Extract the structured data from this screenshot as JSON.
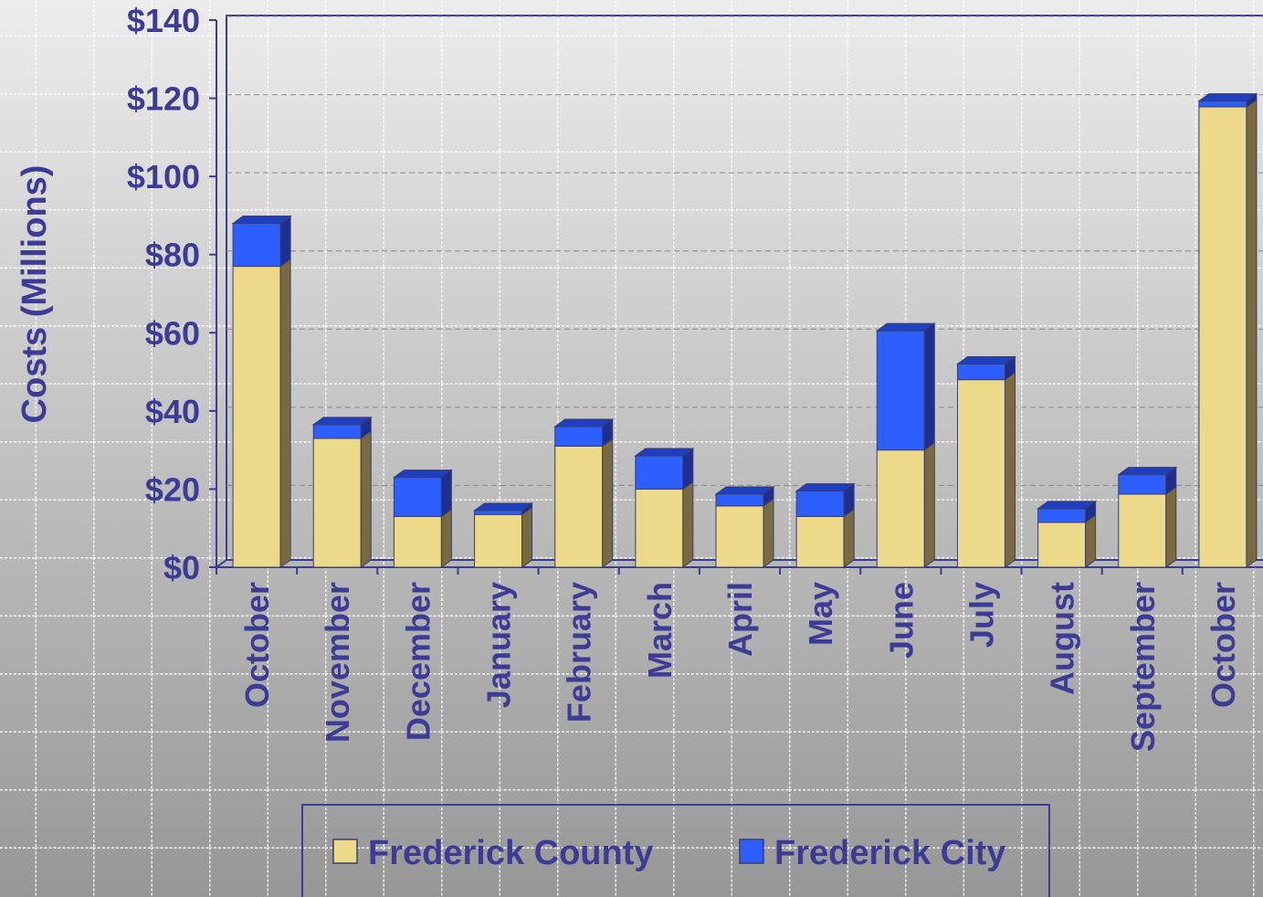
{
  "chart_data": {
    "type": "stacked_bar_3d",
    "y_label": "Costs (Millions)",
    "categories": [
      "October",
      "November",
      "December",
      "January",
      "February",
      "March",
      "April",
      "May",
      "June",
      "July",
      "August",
      "September",
      "October"
    ],
    "series": [
      {
        "name": "Frederick County",
        "color": "#ecd98a",
        "values": [
          77,
          33,
          13,
          13.5,
          31,
          20,
          15.7,
          13,
          30,
          48,
          11.5,
          18.7,
          117.8
        ]
      },
      {
        "name": "Frederick City",
        "color": "#2d5fff",
        "values": [
          11,
          3.5,
          10,
          1,
          5,
          8.5,
          3,
          6.5,
          30.5,
          4,
          3.5,
          5,
          1.5
        ]
      }
    ],
    "ylim": [
      0,
      140
    ],
    "yticks": [
      {
        "value": 0,
        "label": "$0"
      },
      {
        "value": 20,
        "label": "$20"
      },
      {
        "value": 40,
        "label": "$40"
      },
      {
        "value": 60,
        "label": "$60"
      },
      {
        "value": 80,
        "label": "$80"
      },
      {
        "value": 100,
        "label": "$100"
      },
      {
        "value": 120,
        "label": "$120"
      },
      {
        "value": 140,
        "label": "$140"
      }
    ],
    "grid": true,
    "legend": "bottom"
  }
}
